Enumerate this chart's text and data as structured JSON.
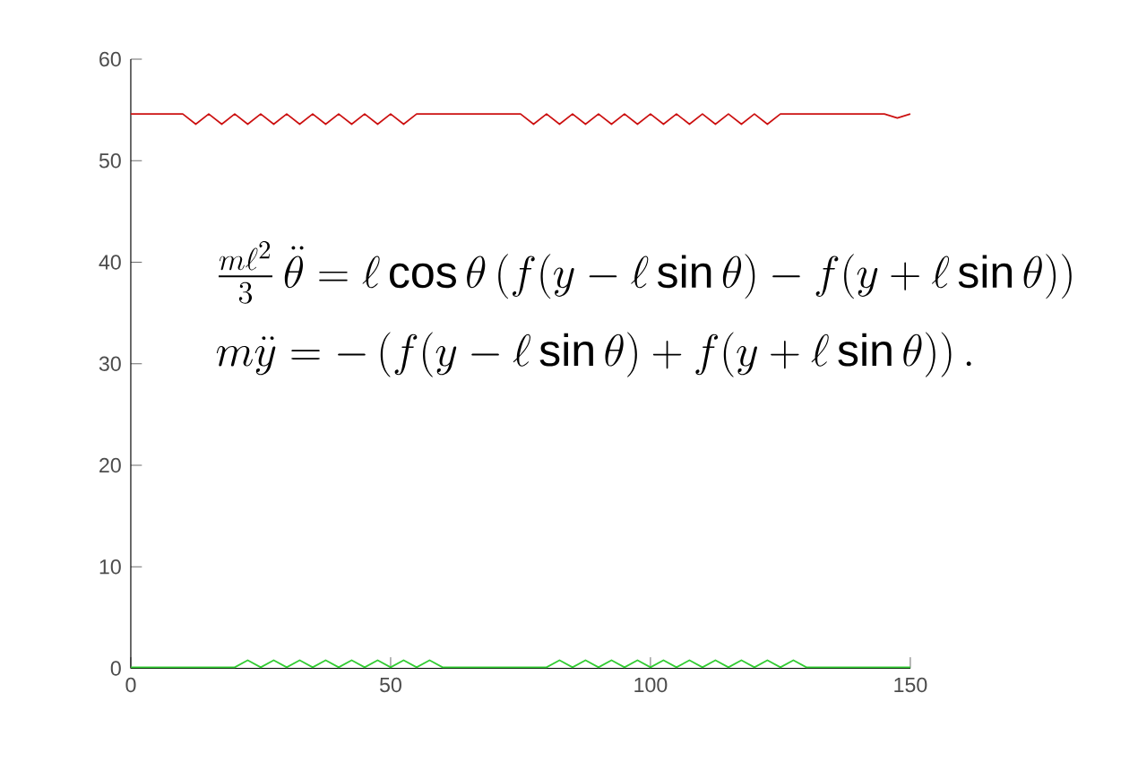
{
  "chart_data": {
    "type": "line",
    "xlim": [
      0,
      150
    ],
    "ylim": [
      0,
      60
    ],
    "xticks": [
      0,
      50,
      100,
      150
    ],
    "yticks": [
      0,
      10,
      20,
      30,
      40,
      50,
      60
    ],
    "grid": false,
    "x": [
      0,
      2.5,
      5,
      7.5,
      10,
      12.5,
      15,
      17.5,
      20,
      22.5,
      25,
      27.5,
      30,
      32.5,
      35,
      37.5,
      40,
      42.5,
      45,
      47.5,
      50,
      52.5,
      55,
      57.5,
      60,
      62.5,
      65,
      67.5,
      70,
      72.5,
      75,
      77.5,
      80,
      82.5,
      85,
      87.5,
      90,
      92.5,
      95,
      97.5,
      100,
      102.5,
      105,
      107.5,
      110,
      112.5,
      115,
      117.5,
      120,
      122.5,
      125,
      127.5,
      130,
      132.5,
      135,
      137.5,
      140,
      142.5,
      145,
      147.5,
      150
    ],
    "series": [
      {
        "color": "#cc1111",
        "values": [
          54.6,
          54.6,
          54.6,
          54.6,
          54.6,
          53.6,
          54.6,
          53.6,
          54.6,
          53.6,
          54.6,
          53.6,
          54.6,
          53.6,
          54.6,
          53.6,
          54.6,
          53.6,
          54.6,
          53.6,
          54.6,
          53.6,
          54.6,
          54.6,
          54.6,
          54.6,
          54.6,
          54.6,
          54.6,
          54.6,
          54.6,
          53.6,
          54.6,
          53.6,
          54.6,
          53.6,
          54.6,
          53.6,
          54.6,
          53.6,
          54.6,
          53.6,
          54.6,
          53.6,
          54.6,
          53.6,
          54.6,
          53.6,
          54.6,
          53.6,
          54.6,
          54.6,
          54.6,
          54.6,
          54.6,
          54.6,
          54.6,
          54.6,
          54.6,
          54.2,
          54.6
        ]
      },
      {
        "color": "#33cc33",
        "values": [
          0.1,
          0.1,
          0.1,
          0.1,
          0.1,
          0.1,
          0.1,
          0.1,
          0.1,
          0.8,
          0.1,
          0.8,
          0.1,
          0.8,
          0.1,
          0.8,
          0.1,
          0.8,
          0.1,
          0.8,
          0.1,
          0.8,
          0.1,
          0.8,
          0.1,
          0.1,
          0.1,
          0.1,
          0.1,
          0.1,
          0.1,
          0.1,
          0.1,
          0.8,
          0.1,
          0.8,
          0.1,
          0.8,
          0.1,
          0.8,
          0.1,
          0.8,
          0.1,
          0.8,
          0.1,
          0.8,
          0.1,
          0.8,
          0.1,
          0.8,
          0.1,
          0.8,
          0.1,
          0.1,
          0.1,
          0.1,
          0.1,
          0.1,
          0.1,
          0.1,
          0.1
        ]
      }
    ],
    "annotations": [
      "\\frac{m\\ell^2}{3}\\,\\ddot\\theta = \\ell\\cos\\theta\\left(f(y-\\ell\\sin\\theta)-f(y+\\ell\\sin\\theta)\\right)",
      "m\\ddot y = -\\left(f(y-\\ell\\sin\\theta)+f(y+\\ell\\sin\\theta)\\right)."
    ]
  }
}
